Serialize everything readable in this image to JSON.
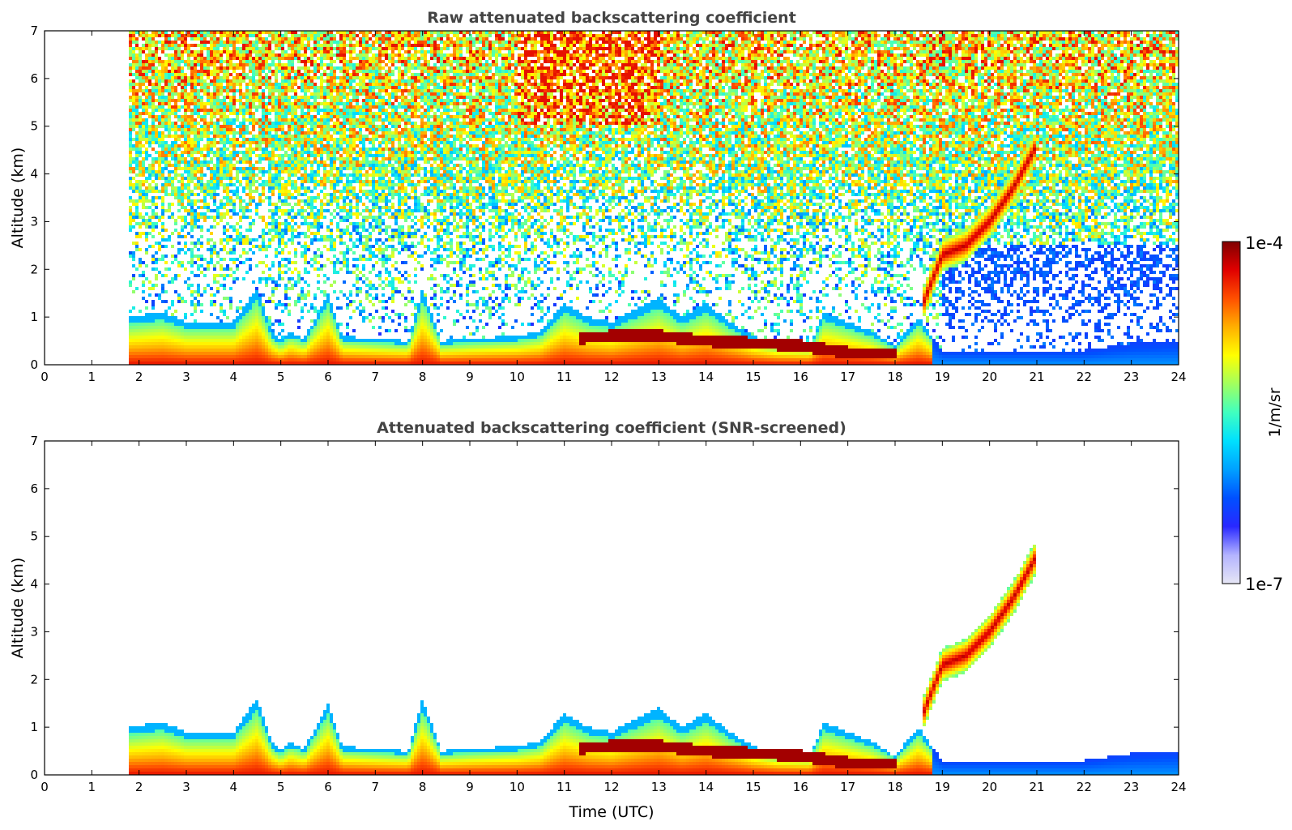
{
  "chart_data": [
    {
      "type": "heatmap",
      "title": "Raw attenuated backscattering coefficient",
      "xlabel": "",
      "ylabel": "Altitude (km)",
      "xlim": [
        0,
        24
      ],
      "ylim": [
        0,
        7
      ],
      "xticks": [
        "0",
        "1",
        "2",
        "3",
        "4",
        "5",
        "6",
        "7",
        "8",
        "9",
        "10",
        "11",
        "12",
        "13",
        "14",
        "15",
        "16",
        "17",
        "18",
        "19",
        "20",
        "21",
        "22",
        "23",
        "24"
      ],
      "yticks": [
        "0",
        "1",
        "2",
        "3",
        "4",
        "5",
        "6",
        "7"
      ],
      "data_start_hour": 1.75,
      "boundary_layer_top_km": [
        [
          1.75,
          1.0
        ],
        [
          2.5,
          1.1
        ],
        [
          3.0,
          0.9
        ],
        [
          4.0,
          0.9
        ],
        [
          4.5,
          1.6
        ],
        [
          4.8,
          0.7
        ],
        [
          5.0,
          0.5
        ],
        [
          5.2,
          0.7
        ],
        [
          5.5,
          0.55
        ],
        [
          6.0,
          1.5
        ],
        [
          6.3,
          0.6
        ],
        [
          7.0,
          0.55
        ],
        [
          7.7,
          0.5
        ],
        [
          8.0,
          1.6
        ],
        [
          8.4,
          0.5
        ],
        [
          9.0,
          0.55
        ],
        [
          10.0,
          0.6
        ],
        [
          10.5,
          0.7
        ],
        [
          11.0,
          1.3
        ],
        [
          11.5,
          1.0
        ],
        [
          12.0,
          0.9
        ],
        [
          13.0,
          1.4
        ],
        [
          13.5,
          1.0
        ],
        [
          14.0,
          1.3
        ],
        [
          14.5,
          0.9
        ],
        [
          15.0,
          0.6
        ],
        [
          15.5,
          0.45
        ],
        [
          16.2,
          0.4
        ],
        [
          16.5,
          1.1
        ],
        [
          17.0,
          0.9
        ],
        [
          17.5,
          0.7
        ],
        [
          18.0,
          0.4
        ],
        [
          18.5,
          1.0
        ],
        [
          19.0,
          0.3
        ],
        [
          20.0,
          0.3
        ],
        [
          22.0,
          0.3
        ],
        [
          23.0,
          0.45
        ],
        [
          24.0,
          0.5
        ]
      ],
      "elevated_layer_km": [
        [
          18.6,
          1.3
        ],
        [
          19.0,
          2.3
        ],
        [
          19.5,
          2.5
        ],
        [
          20.0,
          3.0
        ],
        [
          20.5,
          3.7
        ],
        [
          21.0,
          4.6
        ]
      ],
      "residual_layer_km": [
        [
          11.3,
          0.55
        ],
        [
          12.0,
          0.6
        ],
        [
          13.0,
          0.6
        ],
        [
          14.0,
          0.5
        ],
        [
          15.0,
          0.45
        ],
        [
          16.0,
          0.4
        ],
        [
          17.0,
          0.25
        ],
        [
          18.0,
          0.25
        ]
      ]
    },
    {
      "type": "heatmap",
      "title": "Attenuated backscattering coefficient (SNR-screened)",
      "xlabel": "Time (UTC)",
      "ylabel": "Altitude (km)",
      "xlim": [
        0,
        24
      ],
      "ylim": [
        0,
        7
      ],
      "xticks": [
        "0",
        "1",
        "2",
        "3",
        "4",
        "5",
        "6",
        "7",
        "8",
        "9",
        "10",
        "11",
        "12",
        "13",
        "14",
        "15",
        "16",
        "17",
        "18",
        "19",
        "20",
        "21",
        "22",
        "23",
        "24"
      ],
      "yticks": [
        "0",
        "1",
        "2",
        "3",
        "4",
        "5",
        "6",
        "7"
      ]
    }
  ],
  "colorbar": {
    "min_label": "1e-7",
    "max_label": "1e-4",
    "unit_label": "1/m/sr",
    "scale": "log",
    "colors": [
      "#e6e6f5",
      "#b4b4ff",
      "#2828ff",
      "#0050ff",
      "#00a0ff",
      "#00e0ff",
      "#40ffc0",
      "#a0ff60",
      "#ffff00",
      "#ffb000",
      "#ff5000",
      "#e00000",
      "#800000"
    ]
  }
}
